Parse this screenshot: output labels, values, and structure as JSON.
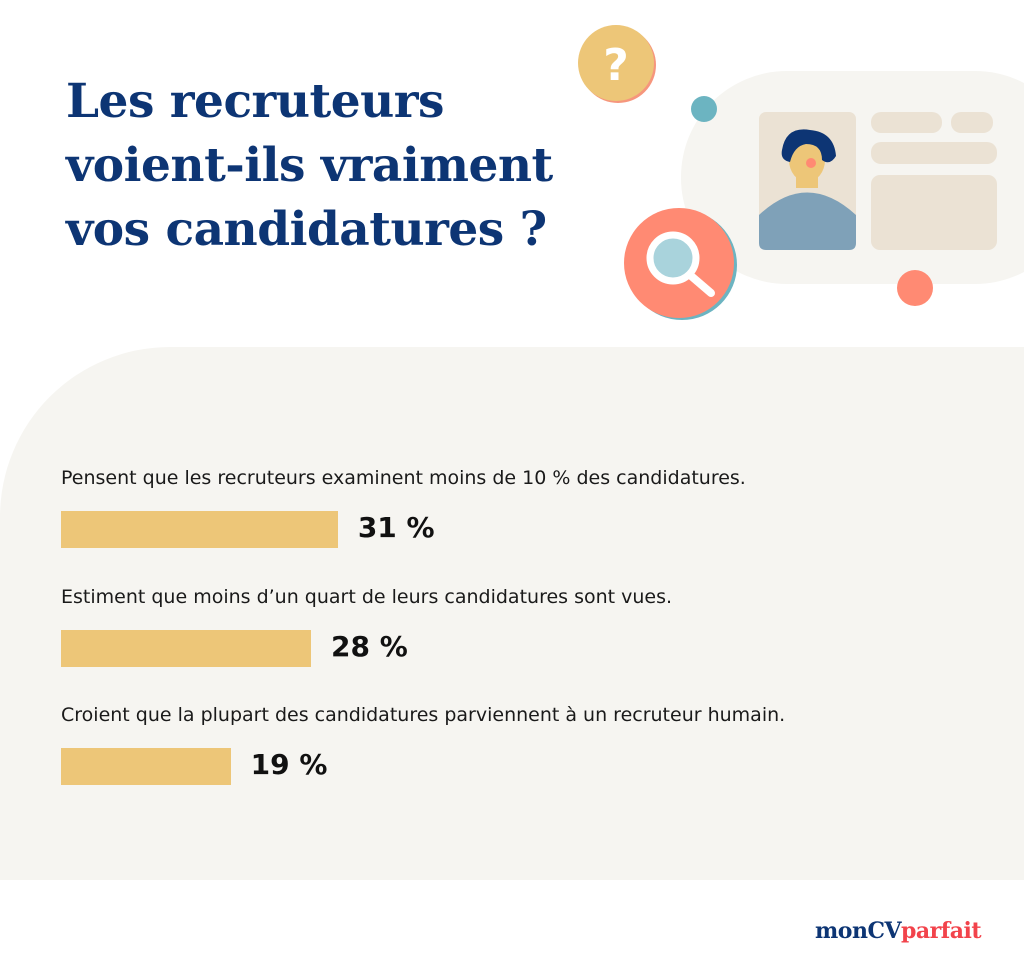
{
  "title_lines": [
    "Les recruteurs",
    "voient-ils vraiment",
    "vos candidatures ?"
  ],
  "chart_data": {
    "type": "bar",
    "orientation": "horizontal",
    "categories": [
      "Pensent que les recruteurs examinent moins de 10 % des candidatures.",
      "Estiment que moins d’un quart de leurs candidatures sont vues.",
      "Croient que la plupart des candidatures parviennent à un recruteur humain."
    ],
    "values": [
      31,
      28,
      19
    ],
    "value_labels": [
      "31 %",
      "28 %",
      "19 %"
    ],
    "unit": "%",
    "xlim": [
      0,
      100
    ],
    "grid": false,
    "bar_color": "#edc678"
  },
  "colors": {
    "title": "#0d3574",
    "panel": "#f6f5f1",
    "accent_red": "#f2434b",
    "coral": "#ff8a73",
    "teal": "#6cb4c1",
    "mustard": "#edc678"
  },
  "icons": [
    "question-mark-icon",
    "magnifier-icon",
    "profile-card-illustration"
  ],
  "logo": {
    "part1": "monCV",
    "part2": "parfait"
  }
}
